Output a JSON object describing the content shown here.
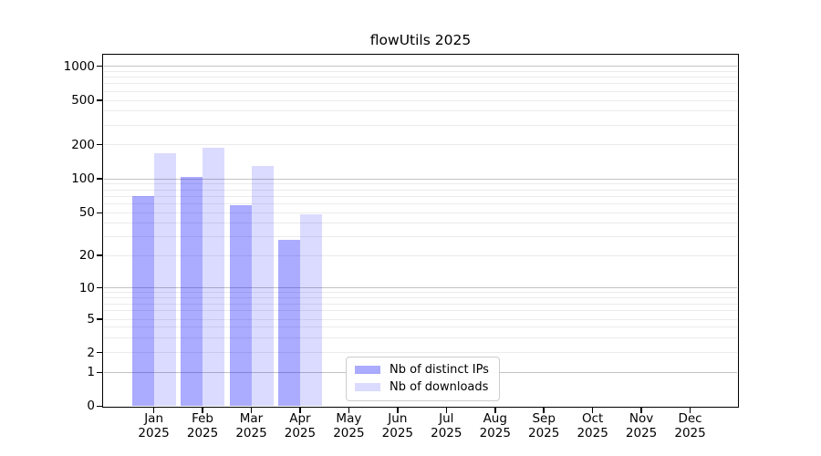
{
  "title": "flowUtils 2025",
  "chart_data": {
    "type": "bar",
    "title": "flowUtils 2025",
    "yscale": "log-with-zero",
    "ylim": [
      0,
      1400
    ],
    "y_ticks": [
      0,
      1,
      2,
      5,
      10,
      20,
      50,
      100,
      200,
      500,
      1000
    ],
    "categories": [
      "Jan",
      "Feb",
      "Mar",
      "Apr",
      "May",
      "Jun",
      "Jul",
      "Aug",
      "Sep",
      "Oct",
      "Nov",
      "Dec"
    ],
    "x_tick_year_line": "2025",
    "series": [
      {
        "name": "Nb of distinct IPs",
        "fill": "rgba(0,0,255,0.33)",
        "fill_hex_on_white": "#aaaaf7",
        "values": [
          70,
          104,
          58,
          28,
          0,
          0,
          0,
          0,
          0,
          0,
          0,
          0
        ]
      },
      {
        "name": "Nb of downloads",
        "fill": "rgba(0,0,255,0.14)",
        "fill_hex_on_white": "#dcdcf9",
        "values": [
          167,
          188,
          130,
          48,
          0,
          0,
          0,
          0,
          0,
          0,
          0,
          0
        ]
      }
    ],
    "legend": {
      "position": "inside-bottom-center"
    },
    "grid": {
      "orientation": "horizontal",
      "major_color": "#c3c3c3",
      "minor_color": "#ebebeb",
      "major_values": [
        1,
        10,
        100,
        1000
      ],
      "minor_values": [
        2,
        3,
        4,
        5,
        6,
        7,
        8,
        9,
        20,
        30,
        40,
        50,
        60,
        70,
        80,
        90,
        200,
        300,
        400,
        500,
        600,
        700,
        800,
        900
      ]
    }
  }
}
